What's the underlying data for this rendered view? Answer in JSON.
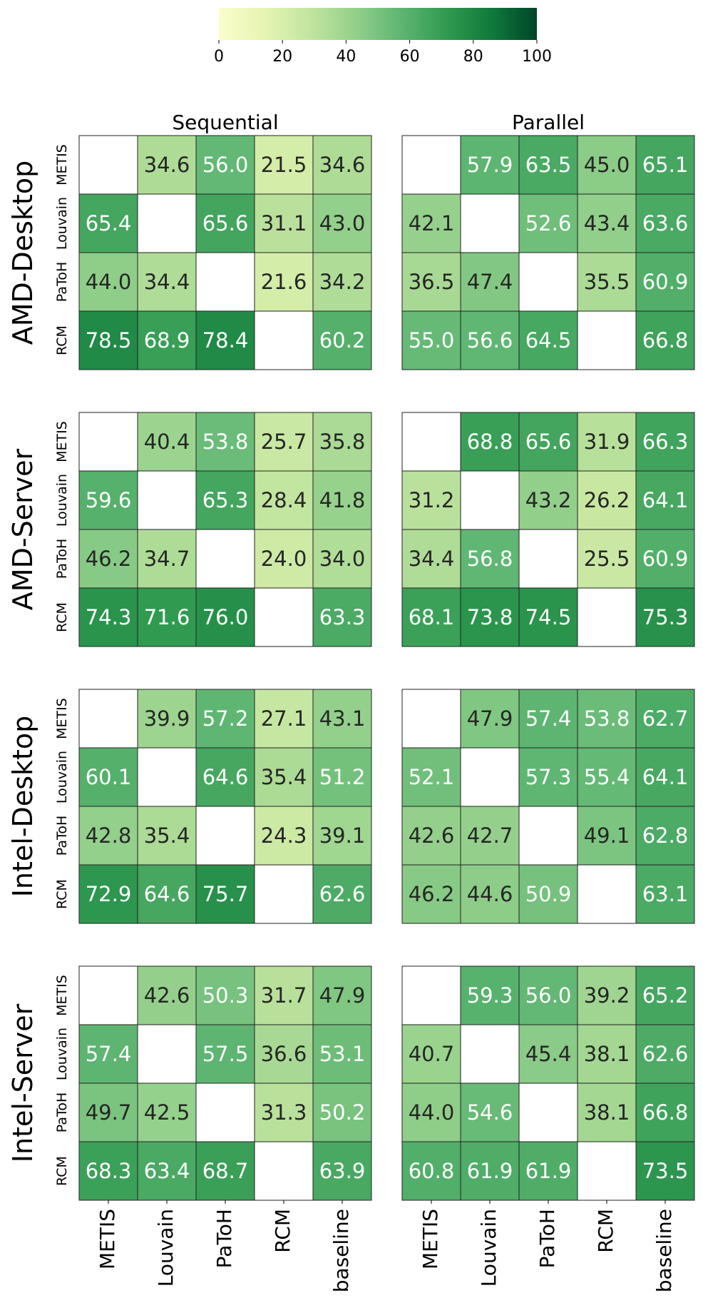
{
  "chart_data": {
    "type": "heatmap",
    "colorbar": {
      "min": 0,
      "max": 100,
      "ticks": [
        "0",
        "20",
        "40",
        "60",
        "80",
        "100"
      ],
      "colormap": "Greens",
      "stops": [
        "#f9fdcb",
        "#e6f5b3",
        "#c2e59f",
        "#93d08b",
        "#5eb672",
        "#319a51",
        "#0f7a3b",
        "#004529"
      ]
    },
    "columns": [
      "METIS",
      "Louvain",
      "PaToH",
      "RCM",
      "baseline"
    ],
    "rows": [
      "METIS",
      "Louvain",
      "PaToH",
      "RCM"
    ],
    "panel_titles": [
      "Sequential",
      "Parallel"
    ],
    "groups": [
      {
        "name": "AMD-Desktop",
        "sequential": [
          [
            null,
            34.6,
            56.0,
            21.5,
            34.6
          ],
          [
            65.4,
            null,
            65.6,
            31.1,
            43.0
          ],
          [
            44.0,
            34.4,
            null,
            21.6,
            34.2
          ],
          [
            78.5,
            68.9,
            78.4,
            null,
            60.2
          ]
        ],
        "parallel": [
          [
            null,
            57.9,
            63.5,
            45.0,
            65.1
          ],
          [
            42.1,
            null,
            52.6,
            43.4,
            63.6
          ],
          [
            36.5,
            47.4,
            null,
            35.5,
            60.9
          ],
          [
            55.0,
            56.6,
            64.5,
            null,
            66.8
          ]
        ]
      },
      {
        "name": "AMD-Server",
        "sequential": [
          [
            null,
            40.4,
            53.8,
            25.7,
            35.8
          ],
          [
            59.6,
            null,
            65.3,
            28.4,
            41.8
          ],
          [
            46.2,
            34.7,
            null,
            24.0,
            34.0
          ],
          [
            74.3,
            71.6,
            76.0,
            null,
            63.3
          ]
        ],
        "parallel": [
          [
            null,
            68.8,
            65.6,
            31.9,
            66.3
          ],
          [
            31.2,
            null,
            43.2,
            26.2,
            64.1
          ],
          [
            34.4,
            56.8,
            null,
            25.5,
            60.9
          ],
          [
            68.1,
            73.8,
            74.5,
            null,
            75.3
          ]
        ]
      },
      {
        "name": "Intel-Desktop",
        "sequential": [
          [
            null,
            39.9,
            57.2,
            27.1,
            43.1
          ],
          [
            60.1,
            null,
            64.6,
            35.4,
            51.2
          ],
          [
            42.8,
            35.4,
            null,
            24.3,
            39.1
          ],
          [
            72.9,
            64.6,
            75.7,
            null,
            62.6
          ]
        ],
        "parallel": [
          [
            null,
            47.9,
            57.4,
            53.8,
            62.7
          ],
          [
            52.1,
            null,
            57.3,
            55.4,
            64.1
          ],
          [
            42.6,
            42.7,
            null,
            49.1,
            62.8
          ],
          [
            46.2,
            44.6,
            50.9,
            null,
            63.1
          ]
        ]
      },
      {
        "name": "Intel-Server",
        "sequential": [
          [
            null,
            42.6,
            50.3,
            31.7,
            47.9
          ],
          [
            57.4,
            null,
            57.5,
            36.6,
            53.1
          ],
          [
            49.7,
            42.5,
            null,
            31.3,
            50.2
          ],
          [
            68.3,
            63.4,
            68.7,
            null,
            63.9
          ]
        ],
        "parallel": [
          [
            null,
            59.3,
            56.0,
            39.2,
            65.2
          ],
          [
            40.7,
            null,
            45.4,
            38.1,
            62.6
          ],
          [
            44.0,
            54.6,
            null,
            38.1,
            66.8
          ],
          [
            60.8,
            61.9,
            61.9,
            null,
            73.5
          ]
        ]
      }
    ]
  }
}
